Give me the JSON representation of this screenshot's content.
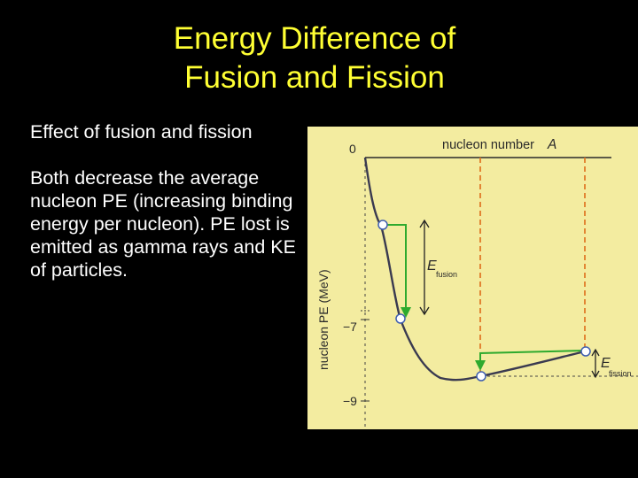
{
  "title": {
    "line1": "Energy Difference of",
    "line2": "Fusion and Fission"
  },
  "body": {
    "para1": "Effect of fusion and fission",
    "para2": "Both decrease the average nucleon PE (increasing binding energy per nucleon). PE lost is emitted as gamma rays and KE of particles."
  },
  "figure": {
    "x_axis_label": "nucleon number",
    "x_axis_symbol": "A",
    "y_axis_label": "nucleon PE (MeV)",
    "tick_0": "0",
    "tick_7": "−7",
    "tick_9": "−9",
    "e_fusion_main": "E",
    "e_fusion_sub": "fusion",
    "e_fission_main": "E",
    "e_fission_sub": "fission",
    "colors": {
      "background": "#f3eca0",
      "curve": "#3a3a50",
      "arrow_green": "#2eaa2e",
      "dashed_orange": "#e07a28",
      "point_fill": "#ffffff",
      "point_stroke": "#3f5fb0"
    }
  }
}
